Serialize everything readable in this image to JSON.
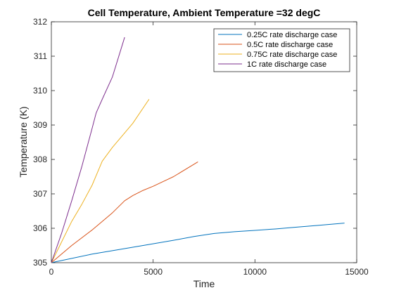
{
  "chart_data": {
    "type": "line",
    "title": "Cell Temperature, Ambient Temperature =32 degC",
    "xlabel": "Time",
    "ylabel": "Temperature (K)",
    "xlim": [
      0,
      15000
    ],
    "ylim": [
      305,
      312
    ],
    "xticks": [
      0,
      5000,
      10000,
      15000
    ],
    "xtick_labels": [
      "0",
      "5000",
      "10000",
      "15000"
    ],
    "yticks": [
      305,
      306,
      307,
      308,
      309,
      310,
      311,
      312
    ],
    "ytick_labels": [
      "305",
      "306",
      "307",
      "308",
      "309",
      "310",
      "311",
      "312"
    ],
    "grid": false,
    "legend_position": "top-right",
    "series": [
      {
        "name": "0.25C rate discharge case",
        "color": "#0072BD",
        "x": [
          0,
          2000,
          4000,
          6000,
          7000,
          8000,
          9000,
          10000,
          11000,
          12000,
          13000,
          14400
        ],
        "y": [
          305.0,
          305.25,
          305.45,
          305.65,
          305.76,
          305.85,
          305.9,
          305.94,
          305.98,
          306.03,
          306.08,
          306.15
        ]
      },
      {
        "name": "0.5C rate discharge case",
        "color": "#D95319",
        "x": [
          0,
          1000,
          2000,
          3000,
          3600,
          4000,
          4500,
          5000,
          6000,
          7200
        ],
        "y": [
          305.0,
          305.5,
          305.95,
          306.45,
          306.8,
          306.95,
          307.1,
          307.22,
          307.5,
          307.93
        ]
      },
      {
        "name": "0.75C rate discharge case",
        "color": "#EDB120",
        "x": [
          0,
          500,
          1000,
          1500,
          2000,
          2500,
          3000,
          3500,
          4000,
          4800
        ],
        "y": [
          305.0,
          305.6,
          306.2,
          306.7,
          307.25,
          307.95,
          308.35,
          308.7,
          309.05,
          309.75
        ]
      },
      {
        "name": "1C rate discharge case",
        "color": "#7E2F8E",
        "x": [
          0,
          500,
          1000,
          1500,
          2000,
          2200,
          2500,
          3000,
          3600
        ],
        "y": [
          305.0,
          305.85,
          306.8,
          307.8,
          308.9,
          309.35,
          309.75,
          310.4,
          311.55
        ]
      }
    ]
  }
}
